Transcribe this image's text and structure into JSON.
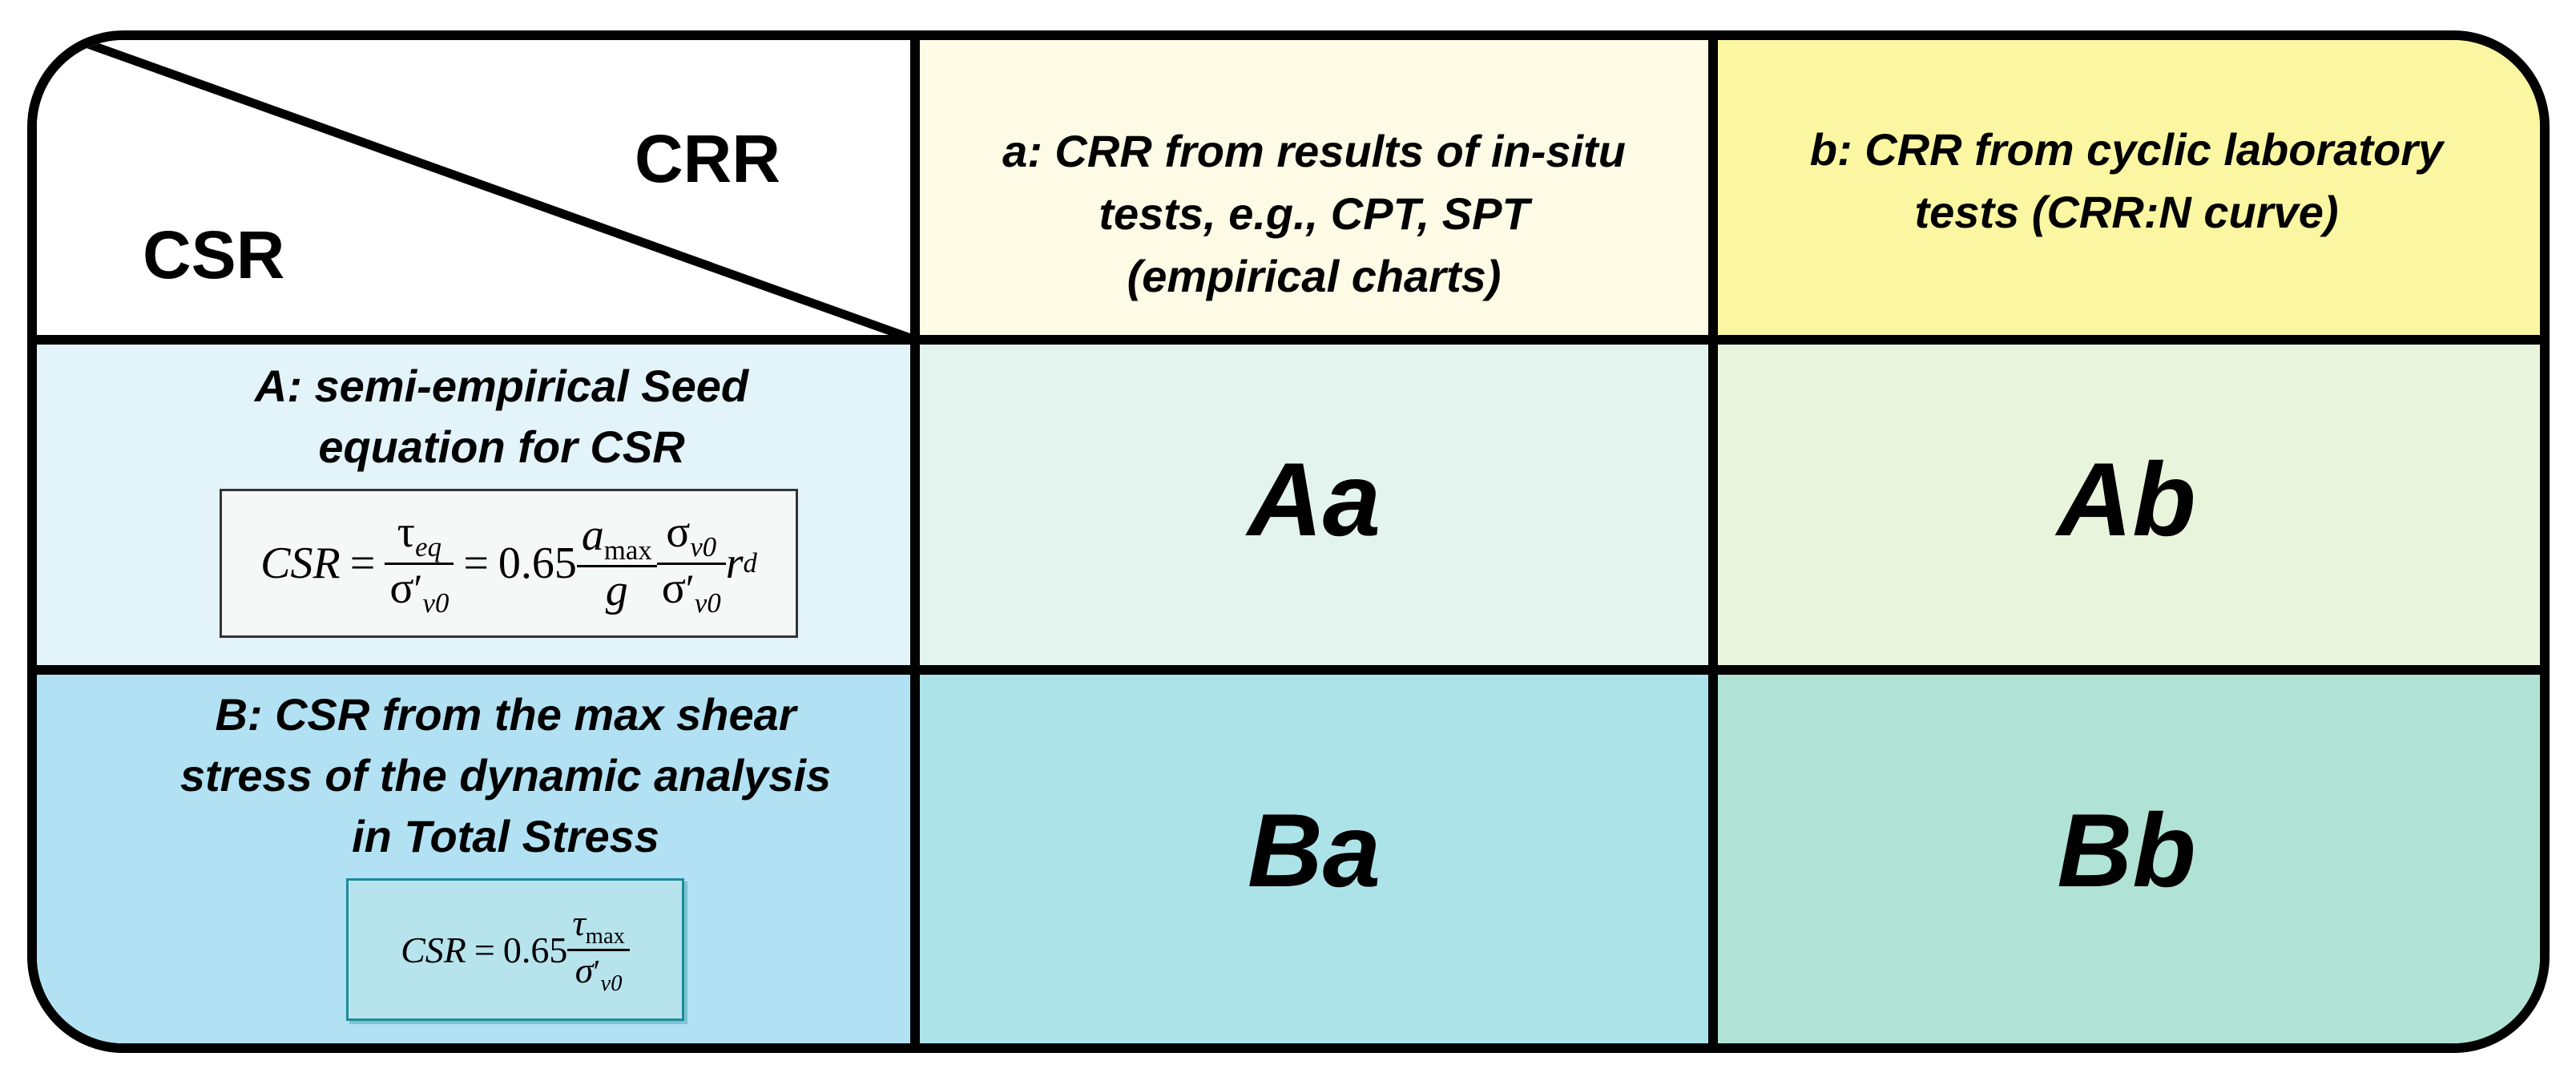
{
  "corner": {
    "col_label": "CRR",
    "row_label": "CSR"
  },
  "columns": [
    {
      "lines": [
        "a: CRR from results of in-situ",
        "tests, e.g., CPT, SPT",
        "(empirical charts)"
      ]
    },
    {
      "lines": [
        "b: CRR from cyclic laboratory",
        "tests (CRR:N curve)"
      ]
    }
  ],
  "rows": [
    {
      "lines": [
        "A: semi-empirical Seed",
        "equation for CSR"
      ],
      "formula": {
        "lhs": "CSR",
        "eq": "=",
        "tau": "τ",
        "tau_sub": "eq",
        "sigma": "σ",
        "prime": "′",
        "sub_v0": "v0",
        "coef": "0.65",
        "a": "a",
        "a_sub": "max",
        "g": "g",
        "r": "r",
        "r_sub": "d"
      }
    },
    {
      "lines": [
        "B: CSR from the max shear",
        "stress of the dynamic analysis",
        "in Total Stress"
      ],
      "formula": {
        "lhs": "CSR",
        "eq": "=",
        "coef": "0.65",
        "tau": "τ",
        "tau_sub": "max",
        "sigma": "σ",
        "prime": "′",
        "sub_v0": "v0"
      }
    }
  ],
  "cells": {
    "Aa": "Aa",
    "Ab": "Ab",
    "Ba": "Ba",
    "Bb": "Bb"
  },
  "colors": {
    "header_a": "#fdfbe6",
    "header_b": "#fbf6a1",
    "row_a": "#e2f3fa",
    "row_b": "#b1e1f2",
    "cell_aa": "#e3f4ef",
    "cell_ab": "#e9f4dc",
    "cell_ba": "#ace3e8",
    "cell_bb": "#b0e3d5"
  }
}
